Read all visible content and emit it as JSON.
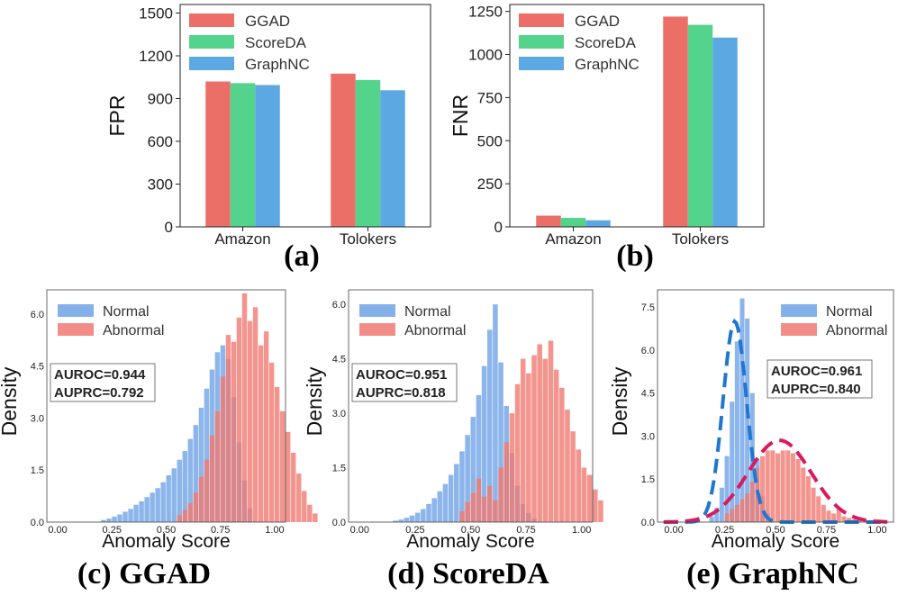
{
  "colors": {
    "ggad": "#ec6f67",
    "scoreda": "#53d38c",
    "graphnc": "#5ba8e3",
    "normal": "#6fa3e6",
    "abnormal": "#f07a72",
    "normal_fit": "#1f77d0",
    "abnormal_fit": "#d81b60"
  },
  "chart_data": [
    {
      "id": "a",
      "type": "bar",
      "caption": "(a)",
      "categories": [
        "Amazon",
        "Tolokers"
      ],
      "series": [
        {
          "name": "GGAD",
          "values": [
            1020,
            1075
          ]
        },
        {
          "name": "ScoreDA",
          "values": [
            1008,
            1030
          ]
        },
        {
          "name": "GraphNC",
          "values": [
            995,
            958
          ]
        }
      ],
      "xlabel": "",
      "ylabel": "FPR",
      "ylim": [
        0,
        1560
      ],
      "yticks": [
        0,
        300,
        600,
        900,
        1200,
        1500
      ],
      "legend": "top-left",
      "grid": false
    },
    {
      "id": "b",
      "type": "bar",
      "caption": "(b)",
      "categories": [
        "Amazon",
        "Tolokers"
      ],
      "series": [
        {
          "name": "GGAD",
          "values": [
            65,
            1220
          ]
        },
        {
          "name": "ScoreDA",
          "values": [
            52,
            1172
          ]
        },
        {
          "name": "GraphNC",
          "values": [
            38,
            1098
          ]
        }
      ],
      "xlabel": "",
      "ylabel": "FNR",
      "ylim": [
        0,
        1290
      ],
      "yticks": [
        0,
        250,
        500,
        750,
        1000,
        1250
      ],
      "legend": "top-left",
      "grid": false
    },
    {
      "id": "c",
      "type": "bar",
      "subtype": "histogram",
      "caption": "(c)  GGAD",
      "xlabel": "Anomaly Score",
      "ylabel": "Density",
      "xlim": [
        -0.05,
        1.05
      ],
      "ylim": [
        0,
        6.7
      ],
      "xticks": [
        "0.00",
        "0.25",
        "0.50",
        "0.75",
        "1.00"
      ],
      "yticks": [
        "0.0",
        "1.5",
        "3.0",
        "4.5",
        "6.0"
      ],
      "legend": "top-left",
      "annotation": [
        "AUROC=0.944",
        "AUPRC=0.792"
      ],
      "bin_width": 0.025,
      "series": [
        {
          "name": "Normal",
          "bin_start": 0.2,
          "values": [
            0.06,
            0.1,
            0.16,
            0.22,
            0.3,
            0.38,
            0.5,
            0.6,
            0.72,
            0.85,
            0.98,
            1.15,
            1.35,
            1.55,
            1.8,
            2.05,
            2.4,
            2.8,
            3.3,
            3.85,
            4.4,
            4.9,
            5.1,
            4.7,
            3.6,
            2.3,
            1.2,
            0.4
          ]
        },
        {
          "name": "Abnormal",
          "bin_start": 0.55,
          "values": [
            0.2,
            0.35,
            0.55,
            0.85,
            1.3,
            1.8,
            2.5,
            3.2,
            4.2,
            5.4,
            5.2,
            5.9,
            6.6,
            5.8,
            6.2,
            5.1,
            5.5,
            4.6,
            3.9,
            3.2,
            2.6,
            2.0,
            1.4,
            0.9,
            0.5,
            0.25
          ]
        }
      ]
    },
    {
      "id": "d",
      "type": "bar",
      "subtype": "histogram",
      "caption": "(d) ScoreDA",
      "xlabel": "Anomaly Score",
      "ylabel": "Density",
      "xlim": [
        -0.05,
        1.05
      ],
      "ylim": [
        0,
        6.4
      ],
      "xticks": [
        "0.00",
        "0.25",
        "0.50",
        "0.75",
        "1.00"
      ],
      "yticks": [
        "0.0",
        "1.5",
        "3.0",
        "4.5",
        "6.0"
      ],
      "legend": "top-left",
      "annotation": [
        "AUROC=0.951",
        "AUPRC=0.818"
      ],
      "bin_width": 0.025,
      "series": [
        {
          "name": "Normal",
          "bin_start": 0.15,
          "values": [
            0.04,
            0.07,
            0.12,
            0.18,
            0.26,
            0.36,
            0.5,
            0.66,
            0.85,
            1.05,
            1.3,
            1.6,
            1.95,
            2.4,
            2.9,
            3.5,
            4.3,
            5.3,
            6.0,
            4.4,
            3.2,
            1.9,
            1.0,
            0.5,
            0.25,
            0.1
          ]
        },
        {
          "name": "Abnormal",
          "bin_start": 0.45,
          "values": [
            0.3,
            0.55,
            0.8,
            1.2,
            0.7,
            1.0,
            0.6,
            1.5,
            2.2,
            3.0,
            3.8,
            4.5,
            4.1,
            4.6,
            4.9,
            4.5,
            5.0,
            4.2,
            3.7,
            3.1,
            2.5,
            2.0,
            1.5,
            1.3,
            0.9,
            0.6
          ]
        }
      ]
    },
    {
      "id": "e",
      "type": "bar",
      "subtype": "histogram",
      "caption": "(e) GraphNC",
      "xlabel": "Anomaly Score",
      "ylabel": "Density",
      "xlim": [
        -0.08,
        1.08
      ],
      "ylim": [
        0,
        8.1
      ],
      "xticks": [
        "0.00",
        "0.25",
        "0.50",
        "0.75",
        "1.00"
      ],
      "yticks": [
        "0.0",
        "1.5",
        "3.0",
        "4.5",
        "6.0",
        "7.5"
      ],
      "legend": "top-right",
      "annotation": [
        "AUROC=0.961",
        "AUPRC=0.840"
      ],
      "bin_width": 0.025,
      "series": [
        {
          "name": "Normal",
          "bin_start": 0.175,
          "values": [
            0.2,
            0.5,
            1.2,
            2.3,
            4.2,
            6.3,
            7.8,
            7.1,
            4.5,
            2.2,
            0.9,
            0.3
          ]
        },
        {
          "name": "Abnormal",
          "bin_start": 0.25,
          "values": [
            0.3,
            0.45,
            0.6,
            0.8,
            1.0,
            1.4,
            1.9,
            2.3,
            2.5,
            2.5,
            2.4,
            2.5,
            2.5,
            2.4,
            2.2,
            1.9,
            1.6,
            1.2,
            0.9,
            0.6,
            0.4,
            0.3,
            0.5,
            0.2,
            0.15,
            0.1,
            0.05
          ]
        }
      ],
      "fits": [
        {
          "of": "Normal",
          "type": "gaussian",
          "mean": 0.3,
          "peak": 7.0,
          "sd": 0.058
        },
        {
          "of": "Abnormal",
          "type": "gaussian",
          "mean": 0.52,
          "peak": 2.85,
          "sd": 0.155
        }
      ]
    }
  ]
}
